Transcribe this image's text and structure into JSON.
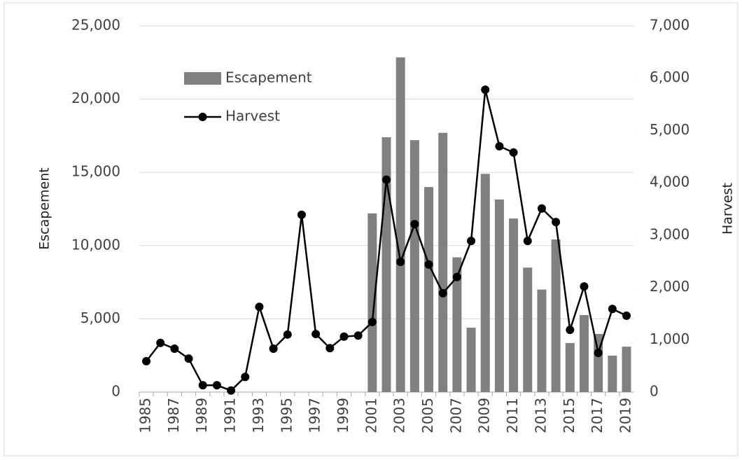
{
  "chart_data": {
    "type": "bar-line",
    "categories": [
      "1985",
      null,
      "1987",
      null,
      "1989",
      null,
      "1991",
      null,
      "1993",
      null,
      "1995",
      null,
      "1997",
      null,
      "1999",
      null,
      "2001",
      null,
      "2003",
      null,
      "2005",
      null,
      "2007",
      null,
      "2009",
      null,
      "2011",
      null,
      "2013",
      null,
      "2015",
      null,
      "2017",
      null,
      "2019"
    ],
    "series": [
      {
        "name": "Escapement",
        "type": "bar",
        "color": "#808080",
        "values": [
          null,
          null,
          null,
          null,
          null,
          null,
          null,
          null,
          null,
          null,
          null,
          null,
          null,
          null,
          null,
          null,
          12200,
          17400,
          22850,
          17200,
          14000,
          17700,
          9200,
          4400,
          14900,
          13150,
          11850,
          8500,
          7000,
          10420,
          3350,
          5260,
          3970,
          2490,
          3100
        ]
      },
      {
        "name": "Harvest",
        "type": "line",
        "axis": "y2",
        "color": "#000000",
        "values": [
          590,
          940,
          830,
          640,
          130,
          130,
          30,
          290,
          1630,
          830,
          1100,
          3390,
          1110,
          840,
          1060,
          1080,
          1340,
          4060,
          2490,
          3210,
          2440,
          1890,
          2200,
          2890,
          5780,
          4700,
          4580,
          2890,
          3510,
          3250,
          1190,
          2020,
          750,
          1590,
          1460
        ]
      }
    ],
    "y_label": "Escapement",
    "y2_label": "Harvest",
    "ylim": [
      0,
      25000
    ],
    "yticks": [
      0,
      {
        "value": 5000,
        "label": "5,000"
      },
      {
        "value": 10000,
        "label": "10,000"
      },
      {
        "value": 15000,
        "label": "15,000"
      },
      {
        "value": 20000,
        "label": "20,000"
      },
      {
        "value": 25000,
        "label": "25,000"
      }
    ],
    "y2lim": [
      0,
      7000
    ],
    "y2ticks": [
      0,
      {
        "value": 1000,
        "label": "1,000"
      },
      {
        "value": 2000,
        "label": "2,000"
      },
      {
        "value": 3000,
        "label": "3,000"
      },
      {
        "value": 4000,
        "label": "4,000"
      },
      {
        "value": 5000,
        "label": "5,000"
      },
      {
        "value": 6000,
        "label": "6,000"
      },
      {
        "value": 7000,
        "label": "7,000"
      }
    ],
    "grid": true,
    "legend": "upper left"
  }
}
